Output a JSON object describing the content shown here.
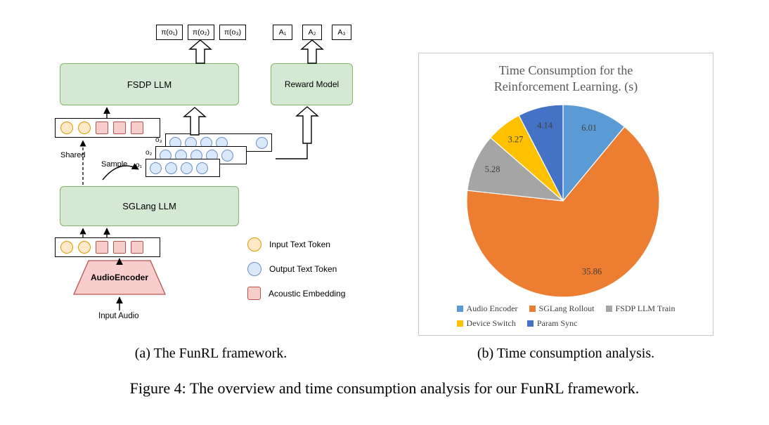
{
  "figure": {
    "caption_a": "(a) The FunRL framework.",
    "caption_b": "(b) Time consumption analysis.",
    "caption_main": "Figure 4: The overview and time consumption analysis for our FunRL framework."
  },
  "diagram": {
    "pi_boxes": [
      "π(o₁)",
      "π(o₂)",
      "π(o₃)"
    ],
    "a_boxes": [
      "A₁",
      "A₂",
      "A₃"
    ],
    "fsdp_llm": "FSDP LLM",
    "reward_model": "Reward Model",
    "sglang_llm": "SGLang LLM",
    "audio_encoder": "AudioEncoder",
    "input_audio": "Input Audio",
    "shared": "Shared",
    "sample": "Sample",
    "token_row_pattern": [
      "input",
      "input",
      "acoustic",
      "acoustic",
      "acoustic"
    ],
    "o_rows": [
      {
        "label": "o₃",
        "circles": 5,
        "last_separated": true
      },
      {
        "label": "o₂",
        "circles": 5,
        "last_separated": false
      },
      {
        "label": "o₁",
        "circles": 4,
        "last_separated": false
      }
    ],
    "legend": [
      {
        "label": "Input Text Token",
        "shape": "circle",
        "fill": "#FFE9C8",
        "stroke": "#D79B00"
      },
      {
        "label": "Output Text Token",
        "shape": "circle",
        "fill": "#DAE8FC",
        "stroke": "#6C8EBF"
      },
      {
        "label": "Acoustic Embedding",
        "shape": "square",
        "fill": "#F8CECC",
        "stroke": "#B85450"
      }
    ],
    "colors": {
      "green_fill": "#D5E8D4",
      "green_stroke": "#82B366",
      "pink_fill": "#F8CECC",
      "pink_stroke": "#B85450",
      "blue_fill": "#DAE8FC",
      "blue_stroke": "#6C8EBF",
      "yellow_fill": "#FFE9C8",
      "yellow_stroke": "#D79B00"
    }
  },
  "chart_data": {
    "type": "pie",
    "title": "Time Consumption for the Reinforcement Learning. (s)",
    "title_lines": [
      "Time Consumption for the",
      "Reinforcement Learning. (s)"
    ],
    "categories": [
      "Audio Encoder",
      "SGLang Rollout",
      "FSDP LLM Train",
      "Device Switch",
      "Param Sync"
    ],
    "values": [
      6.01,
      35.86,
      5.28,
      3.27,
      4.14
    ],
    "colors": [
      "#5B9BD5",
      "#ED7D31",
      "#A5A5A5",
      "#FFC000",
      "#4472C4"
    ],
    "start_angle_deg": -90,
    "direction": "clockwise",
    "legend_position": "bottom",
    "legend_rows": [
      3,
      2
    ],
    "label_color": "#3f3f3f",
    "title_color": "#595959"
  }
}
